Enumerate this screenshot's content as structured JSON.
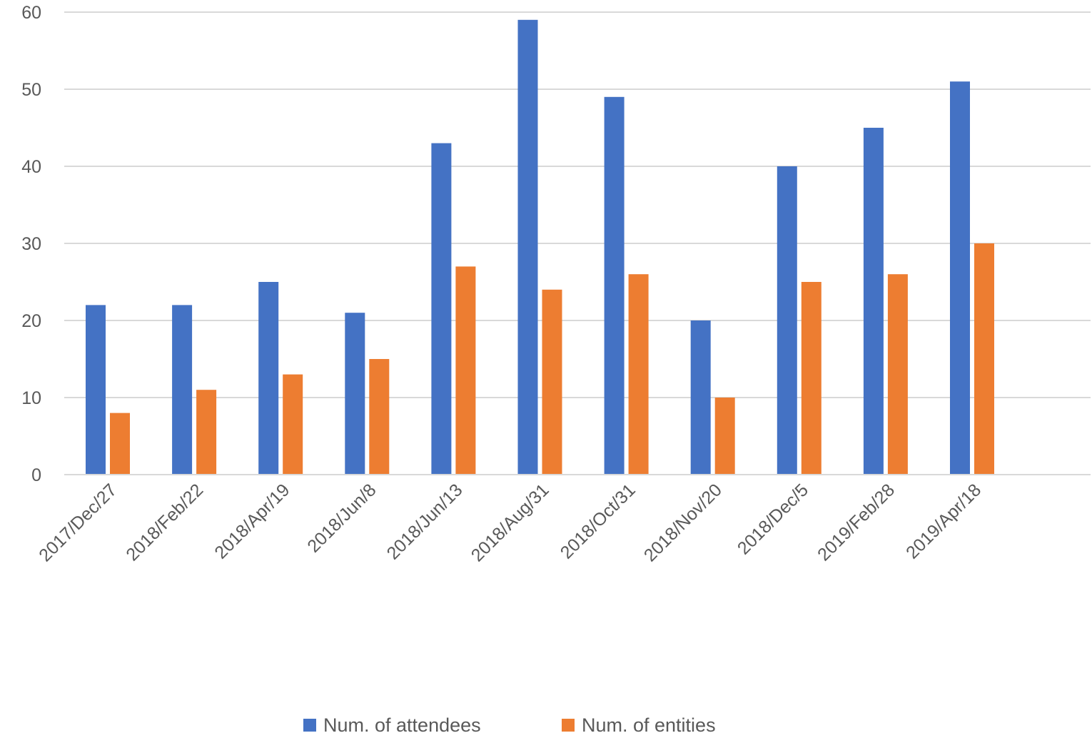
{
  "chart_data": {
    "type": "bar",
    "title": "",
    "xlabel": "",
    "ylabel": "",
    "ylim": [
      0,
      60
    ],
    "yticks": [
      0,
      10,
      20,
      30,
      40,
      50,
      60
    ],
    "grid": true,
    "legend_position": "bottom",
    "categories": [
      "2017/Dec/27",
      "2018/Feb/22",
      "2018/Apr/19",
      "2018/Jun/8",
      "2018/Jun/13",
      "2018/Aug/31",
      "2018/Oct/31",
      "2018/Nov/20",
      "2018/Dec/5",
      "2019/Feb/28",
      "2019/Apr/18"
    ],
    "series": [
      {
        "name": "Num. of attendees",
        "color": "#4472C4",
        "values": [
          22,
          22,
          25,
          21,
          43,
          59,
          49,
          20,
          40,
          45,
          51
        ]
      },
      {
        "name": "Num. of entities",
        "color": "#ED7D31",
        "values": [
          8,
          11,
          13,
          15,
          27,
          24,
          26,
          10,
          25,
          26,
          30
        ]
      }
    ]
  }
}
